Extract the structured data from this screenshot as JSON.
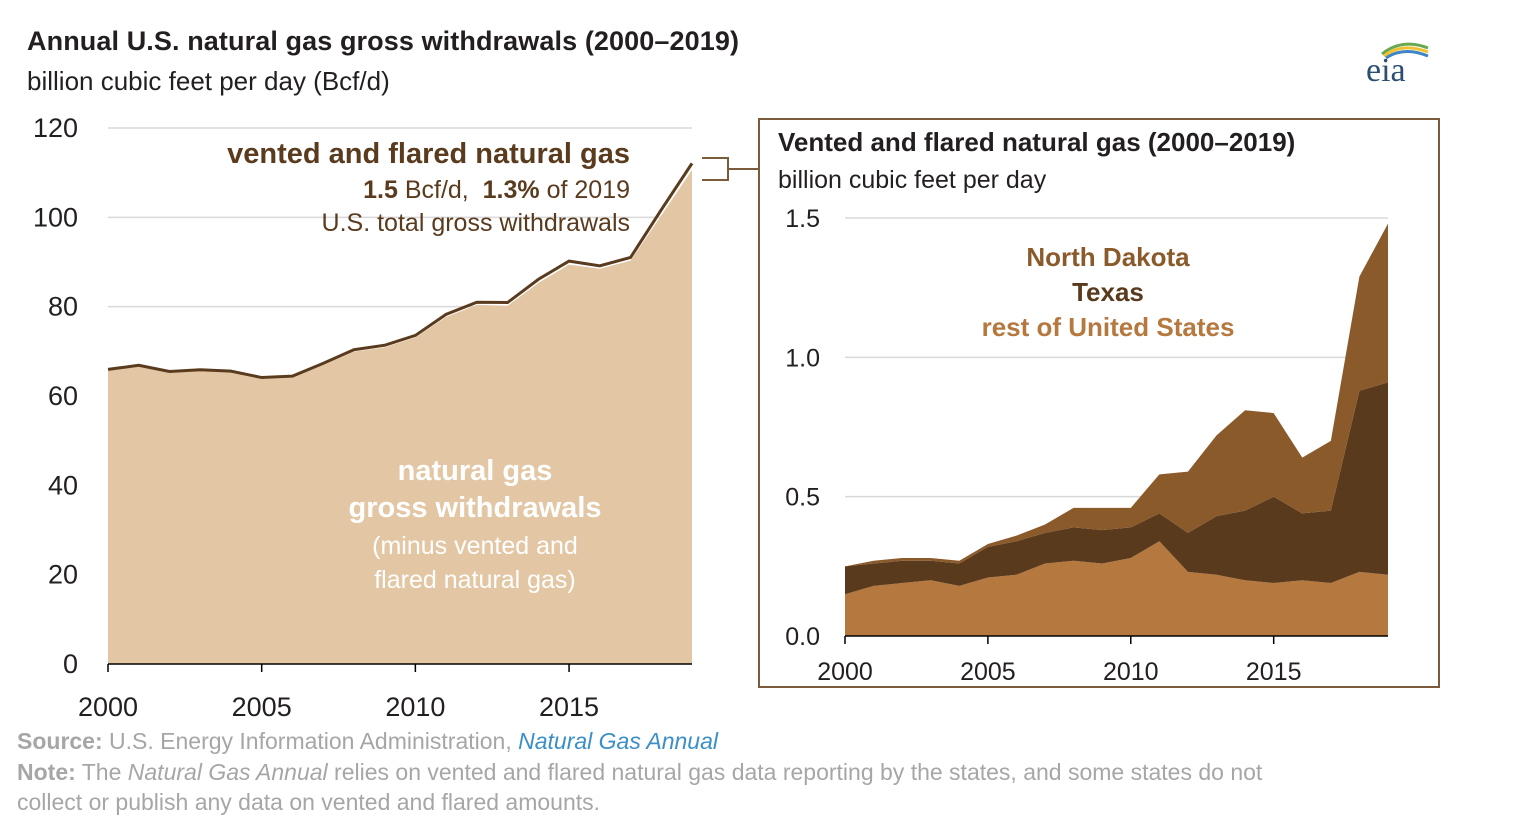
{
  "header": {
    "title": "Annual U.S. natural gas gross withdrawals (2000–2019)",
    "subtitle": "billion cubic feet per day (Bcf/d)",
    "logo_text": "eia"
  },
  "annotation": {
    "line1": "vented and flared natural gas",
    "value_bold": "1.5",
    "value_unit": " Bcf/d,  ",
    "pct_bold": "1.3%",
    "pct_tail": " of 2019",
    "line3": "U.S. total gross withdrawals"
  },
  "area_label": {
    "line1": "natural gas",
    "line2": "gross withdrawals",
    "line3": "(minus vented and",
    "line4": "flared natural gas)"
  },
  "inset": {
    "title": "Vented and flared natural gas (2000–2019)",
    "subtitle": "billion cubic feet per day"
  },
  "footer": {
    "source_label": "Source:",
    "source_text": " U.S. Energy Information Administration, ",
    "source_link": "Natural Gas Annual",
    "note_label": "Note:",
    "note_pre": " The ",
    "note_italic": "Natural Gas Annual",
    "note_line1_rest": " relies on vented and flared natural gas data reporting by the states, and some states do not",
    "note_line2": "collect or publish any data on vented and flared amounts."
  },
  "colors": {
    "main_fill": "#e3c6a4",
    "main_line": "#5a3b1e",
    "north_dakota": "#8b5a2b",
    "texas": "#5a3a1c",
    "rest_of_us": "#b5783e",
    "grid": "#d9d9d9"
  },
  "chart_data": [
    {
      "type": "area",
      "title": "Annual U.S. natural gas gross withdrawals (2000–2019)",
      "ylabel": "billion cubic feet per day (Bcf/d)",
      "x": [
        2000,
        2001,
        2002,
        2003,
        2004,
        2005,
        2006,
        2007,
        2008,
        2009,
        2010,
        2011,
        2012,
        2013,
        2014,
        2015,
        2016,
        2017,
        2018,
        2019
      ],
      "xticks": [
        "2000",
        "2005",
        "2010",
        "2015"
      ],
      "yticks": [
        "0",
        "20",
        "40",
        "60",
        "80",
        "100",
        "120"
      ],
      "ylim": [
        0,
        120
      ],
      "grid": true,
      "series": [
        {
          "name": "natural gas gross withdrawals (minus vented and flared natural gas)",
          "values": [
            65.7,
            66.6,
            65.2,
            65.6,
            65.3,
            63.8,
            64.1,
            66.9,
            69.9,
            70.9,
            73.1,
            77.7,
            80.4,
            80.2,
            85.3,
            89.4,
            88.5,
            90.3,
            100.4,
            110.6
          ]
        },
        {
          "name": "vented and flared natural gas",
          "values": [
            0.25,
            0.27,
            0.28,
            0.28,
            0.27,
            0.33,
            0.36,
            0.4,
            0.46,
            0.46,
            0.46,
            0.58,
            0.59,
            0.72,
            0.81,
            0.8,
            0.64,
            0.71,
            1.29,
            1.48
          ]
        }
      ]
    },
    {
      "type": "area",
      "title": "Vented and flared natural gas (2000–2019)",
      "ylabel": "billion cubic feet per day",
      "x": [
        2000,
        2001,
        2002,
        2003,
        2004,
        2005,
        2006,
        2007,
        2008,
        2009,
        2010,
        2011,
        2012,
        2013,
        2014,
        2015,
        2016,
        2017,
        2018,
        2019
      ],
      "xticks": [
        "2000",
        "2005",
        "2010",
        "2015"
      ],
      "yticks": [
        "0.0",
        "0.5",
        "1.0",
        "1.5"
      ],
      "ylim": [
        0,
        1.5
      ],
      "grid": true,
      "stacked": true,
      "series": [
        {
          "name": "rest of United States",
          "values": [
            0.15,
            0.18,
            0.19,
            0.2,
            0.18,
            0.21,
            0.22,
            0.26,
            0.27,
            0.26,
            0.28,
            0.34,
            0.23,
            0.22,
            0.2,
            0.19,
            0.2,
            0.19,
            0.23,
            0.22
          ]
        },
        {
          "name": "Texas",
          "values": [
            0.1,
            0.08,
            0.08,
            0.07,
            0.08,
            0.11,
            0.12,
            0.11,
            0.12,
            0.12,
            0.11,
            0.1,
            0.14,
            0.21,
            0.25,
            0.31,
            0.24,
            0.26,
            0.65,
            0.69
          ]
        },
        {
          "name": "North Dakota",
          "values": [
            0.0,
            0.01,
            0.01,
            0.01,
            0.01,
            0.01,
            0.02,
            0.03,
            0.07,
            0.08,
            0.07,
            0.14,
            0.22,
            0.29,
            0.36,
            0.3,
            0.2,
            0.25,
            0.41,
            0.57
          ]
        }
      ]
    }
  ]
}
